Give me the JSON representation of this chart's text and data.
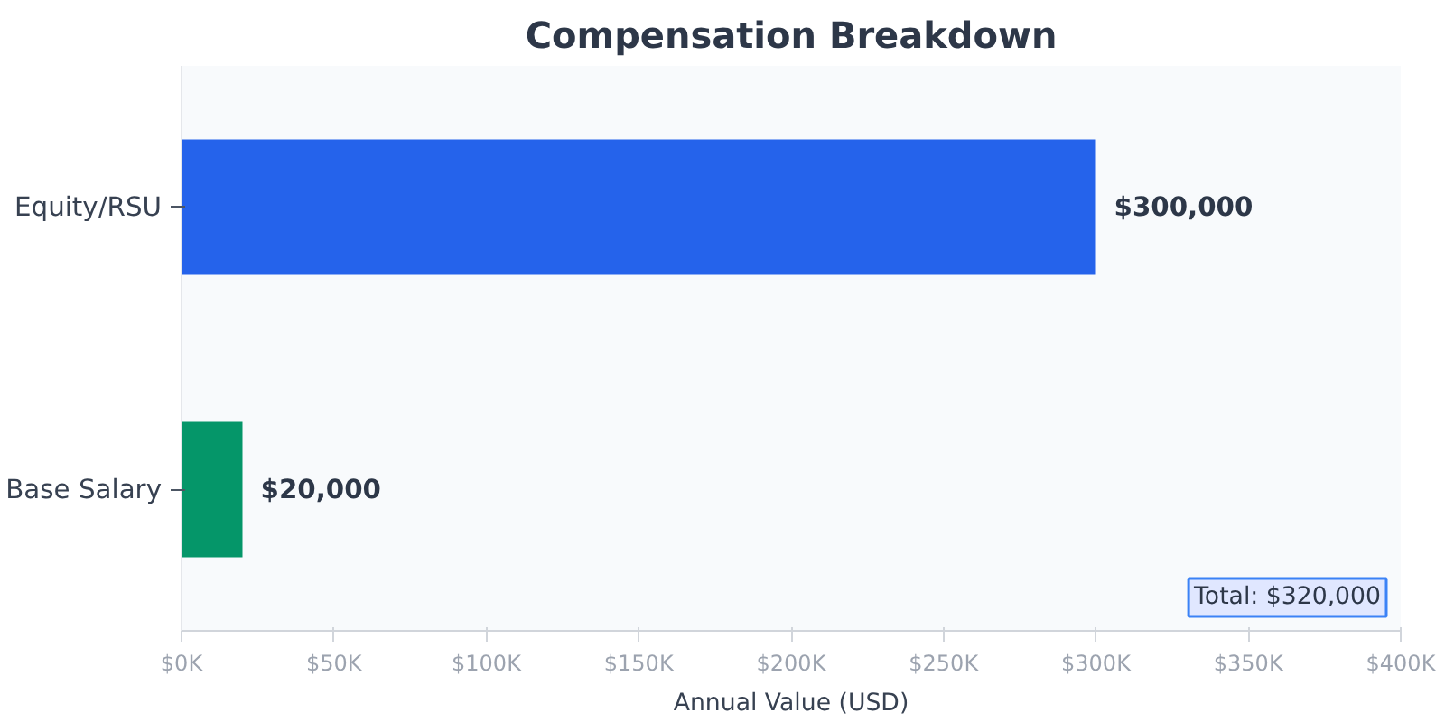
{
  "chart_data": {
    "type": "bar",
    "orientation": "horizontal",
    "title": "Compensation Breakdown",
    "xlabel": "Annual Value (USD)",
    "categories": [
      "Equity/RSU",
      "Base Salary"
    ],
    "values": [
      300000,
      20000
    ],
    "colors": [
      "#2563eb",
      "#059669"
    ],
    "value_labels": [
      "$300,000",
      "$20,000"
    ],
    "xlim": [
      0,
      400000
    ],
    "xticks": [
      {
        "value": 0,
        "label": "$0K"
      },
      {
        "value": 50000,
        "label": "$50K"
      },
      {
        "value": 100000,
        "label": "$100K"
      },
      {
        "value": 150000,
        "label": "$150K"
      },
      {
        "value": 200000,
        "label": "$200K"
      },
      {
        "value": 250000,
        "label": "$250K"
      },
      {
        "value": 300000,
        "label": "$300K"
      },
      {
        "value": 350000,
        "label": "$350K"
      },
      {
        "value": 400000,
        "label": "$400K"
      }
    ],
    "grid": false,
    "annotations": [
      "Total: $320,000"
    ]
  }
}
